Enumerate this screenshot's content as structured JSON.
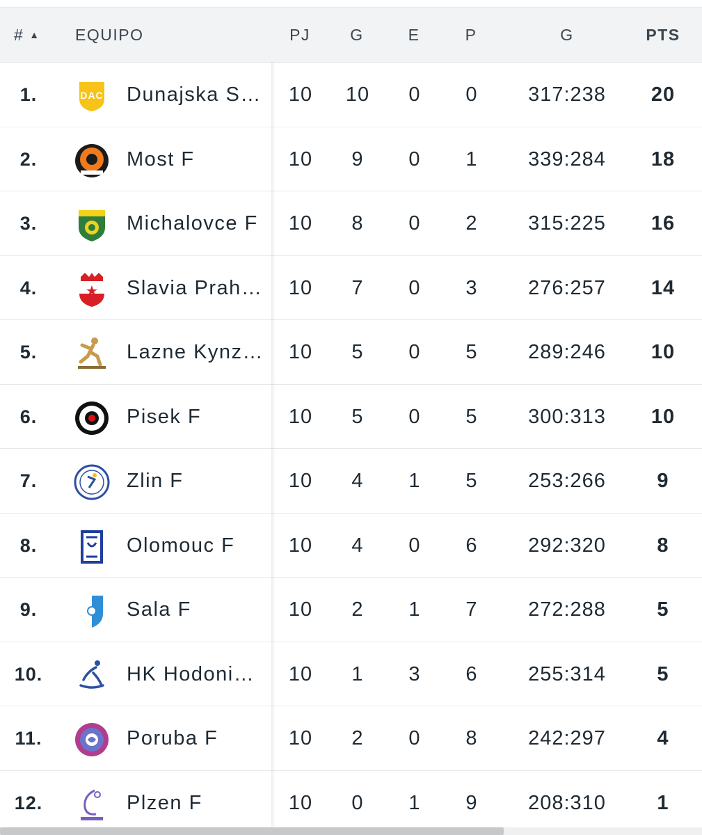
{
  "header": {
    "rank": "#",
    "team": "EQUIPO",
    "pj": "PJ",
    "g": "G",
    "e": "E",
    "p": "P",
    "goals": "G",
    "pts": "PTS"
  },
  "rows": [
    {
      "rank": "1.",
      "team": "Dunajska Streda",
      "pj": "10",
      "g": "10",
      "e": "0",
      "p": "0",
      "goals": "317:238",
      "pts": "20",
      "logo": "dac-logo-icon"
    },
    {
      "rank": "2.",
      "team": "Most F",
      "pj": "10",
      "g": "9",
      "e": "0",
      "p": "1",
      "goals": "339:284",
      "pts": "18",
      "logo": "most-logo-icon"
    },
    {
      "rank": "3.",
      "team": "Michalovce F",
      "pj": "10",
      "g": "8",
      "e": "0",
      "p": "2",
      "goals": "315:225",
      "pts": "16",
      "logo": "iuventa-logo-icon"
    },
    {
      "rank": "4.",
      "team": "Slavia Praha F",
      "pj": "10",
      "g": "7",
      "e": "0",
      "p": "3",
      "goals": "276:257",
      "pts": "14",
      "logo": "slavia-logo-icon"
    },
    {
      "rank": "5.",
      "team": "Lazne Kynzvart F",
      "pj": "10",
      "g": "5",
      "e": "0",
      "p": "5",
      "goals": "289:246",
      "pts": "10",
      "logo": "kynzvart-logo-icon"
    },
    {
      "rank": "6.",
      "team": "Pisek F",
      "pj": "10",
      "g": "5",
      "e": "0",
      "p": "5",
      "goals": "300:313",
      "pts": "10",
      "logo": "pisek-logo-icon"
    },
    {
      "rank": "7.",
      "team": "Zlin F",
      "pj": "10",
      "g": "4",
      "e": "1",
      "p": "5",
      "goals": "253:266",
      "pts": "9",
      "logo": "zlin-logo-icon"
    },
    {
      "rank": "8.",
      "team": "Olomouc F",
      "pj": "10",
      "g": "4",
      "e": "0",
      "p": "6",
      "goals": "292:320",
      "pts": "8",
      "logo": "olomouc-logo-icon"
    },
    {
      "rank": "9.",
      "team": "Sala F",
      "pj": "10",
      "g": "2",
      "e": "1",
      "p": "7",
      "goals": "272:288",
      "pts": "5",
      "logo": "sala-logo-icon"
    },
    {
      "rank": "10.",
      "team": "HK Hodonin F",
      "pj": "10",
      "g": "1",
      "e": "3",
      "p": "6",
      "goals": "255:314",
      "pts": "5",
      "logo": "hodonin-logo-icon"
    },
    {
      "rank": "11.",
      "team": "Poruba F",
      "pj": "10",
      "g": "2",
      "e": "0",
      "p": "8",
      "goals": "242:297",
      "pts": "4",
      "logo": "poruba-logo-icon"
    },
    {
      "rank": "12.",
      "team": "Plzen F",
      "pj": "10",
      "g": "0",
      "e": "1",
      "p": "9",
      "goals": "208:310",
      "pts": "1",
      "logo": "plzen-logo-icon"
    }
  ],
  "colors": {
    "header_bg": "#f1f3f4",
    "text": "#1f2a33",
    "divider": "#e6e9eb"
  }
}
